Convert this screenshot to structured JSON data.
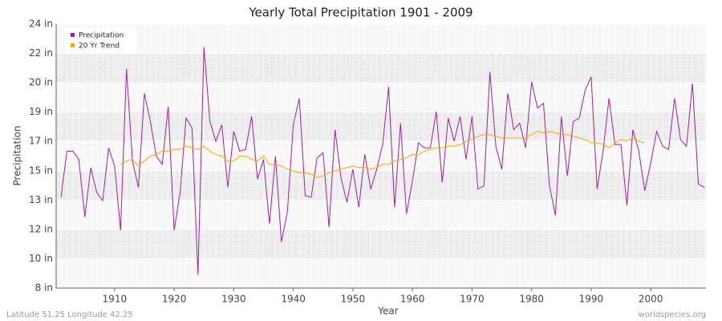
{
  "chart_data": {
    "type": "line",
    "title": "Yearly Total Precipitation 1901 - 2009",
    "x_label": "Year",
    "y_label": "Precipitation",
    "footer_left": "Latitude 51.25 Longitude 42.25",
    "footer_right": "worldspecies.org",
    "legend": "upper left",
    "grid": true,
    "xlim": [
      1901,
      2009
    ],
    "xticks": [
      1910,
      1920,
      1930,
      1940,
      1950,
      1960,
      1970,
      1980,
      1990,
      2000
    ],
    "ylim": [
      8,
      24
    ],
    "yticks": [
      {
        "value": 8,
        "label": "8 in"
      },
      {
        "value": 9.78,
        "label": "10 in"
      },
      {
        "value": 11.56,
        "label": "12 in"
      },
      {
        "value": 13.33,
        "label": "13 in"
      },
      {
        "value": 15.11,
        "label": "15 in"
      },
      {
        "value": 16.89,
        "label": "17 in"
      },
      {
        "value": 18.67,
        "label": "19 in"
      },
      {
        "value": 20.44,
        "label": "20 in"
      },
      {
        "value": 22.22,
        "label": "22 in"
      },
      {
        "value": 24,
        "label": "24 in"
      }
    ],
    "x": [
      1901,
      1902,
      1903,
      1904,
      1905,
      1906,
      1907,
      1908,
      1909,
      1910,
      1911,
      1912,
      1913,
      1914,
      1915,
      1916,
      1917,
      1918,
      1919,
      1920,
      1921,
      1922,
      1923,
      1924,
      1925,
      1926,
      1927,
      1928,
      1929,
      1930,
      1931,
      1932,
      1933,
      1934,
      1935,
      1936,
      1937,
      1938,
      1939,
      1940,
      1941,
      1942,
      1943,
      1944,
      1945,
      1946,
      1947,
      1948,
      1949,
      1950,
      1951,
      1952,
      1953,
      1954,
      1955,
      1956,
      1957,
      1958,
      1959,
      1960,
      1961,
      1962,
      1963,
      1964,
      1965,
      1966,
      1967,
      1968,
      1969,
      1970,
      1971,
      1972,
      1973,
      1974,
      1975,
      1976,
      1977,
      1978,
      1979,
      1980,
      1981,
      1982,
      1983,
      1984,
      1985,
      1986,
      1987,
      1988,
      1989,
      1990,
      1991,
      1992,
      1993,
      1994,
      1995,
      1996,
      1997,
      1998,
      1999,
      2000,
      2001,
      2002,
      2003,
      2004,
      2005,
      2006,
      2007,
      2008,
      2009
    ],
    "series": [
      {
        "name": "Precipitation",
        "color": "#a020a0",
        "values": [
          13.5,
          16.3,
          16.3,
          15.8,
          12.3,
          15.3,
          13.8,
          13.3,
          16.5,
          15.4,
          11.5,
          21.3,
          15.7,
          14.1,
          19.8,
          18.1,
          16.0,
          15.5,
          19.0,
          11.5,
          13.8,
          18.3,
          17.7,
          8.8,
          22.6,
          18.1,
          16.9,
          17.9,
          14.1,
          17.5,
          16.3,
          16.4,
          18.4,
          14.6,
          15.8,
          11.9,
          16.0,
          10.8,
          12.6,
          17.9,
          19.5,
          13.6,
          13.5,
          15.9,
          16.2,
          11.7,
          17.6,
          14.7,
          13.2,
          15.2,
          12.9,
          16.1,
          14.0,
          15.2,
          16.7,
          20.2,
          12.9,
          18.0,
          12.5,
          14.5,
          16.8,
          16.5,
          16.5,
          18.7,
          14.4,
          18.3,
          16.9,
          18.4,
          15.8,
          18.4,
          14.0,
          14.2,
          21.1,
          16.6,
          15.2,
          19.8,
          17.6,
          18.0,
          16.5,
          20.5,
          18.9,
          19.2,
          14.2,
          12.4,
          18.4,
          14.8,
          18.1,
          18.3,
          20.0,
          20.8,
          14.0,
          16.3,
          19.5,
          16.7,
          16.7,
          13.0,
          17.6,
          16.3,
          13.9,
          15.6,
          17.5,
          16.6,
          16.4,
          19.5,
          17.0,
          16.6,
          20.4,
          14.3,
          14.1
        ]
      },
      {
        "name": "20 Yr Trend",
        "color": "#ffa500",
        "values": [
          null,
          null,
          null,
          null,
          null,
          null,
          null,
          null,
          null,
          null,
          15.5,
          15.7,
          15.8,
          15.4,
          15.7,
          16.0,
          16.1,
          16.3,
          16.3,
          16.4,
          16.4,
          16.6,
          16.5,
          16.4,
          16.6,
          16.3,
          16.1,
          16.0,
          15.7,
          15.7,
          16.0,
          16.0,
          15.8,
          15.7,
          16.0,
          15.5,
          15.5,
          15.4,
          15.2,
          15.1,
          15.0,
          15.0,
          14.9,
          14.7,
          14.8,
          15.0,
          15.1,
          15.2,
          15.3,
          15.4,
          15.3,
          15.3,
          15.2,
          15.3,
          15.5,
          15.5,
          15.7,
          15.8,
          15.9,
          16.1,
          16.1,
          16.3,
          16.4,
          16.5,
          16.5,
          16.6,
          16.6,
          16.7,
          16.9,
          17.0,
          17.2,
          17.3,
          17.3,
          17.2,
          17.1,
          17.1,
          17.1,
          17.1,
          17.1,
          17.3,
          17.5,
          17.4,
          17.5,
          17.4,
          17.3,
          17.3,
          17.2,
          17.1,
          17.0,
          16.8,
          16.8,
          16.7,
          16.5,
          16.8,
          17.0,
          16.9,
          17.1,
          16.9,
          16.8,
          null,
          null,
          null,
          null,
          null,
          null,
          null,
          null,
          null,
          null
        ]
      }
    ]
  }
}
